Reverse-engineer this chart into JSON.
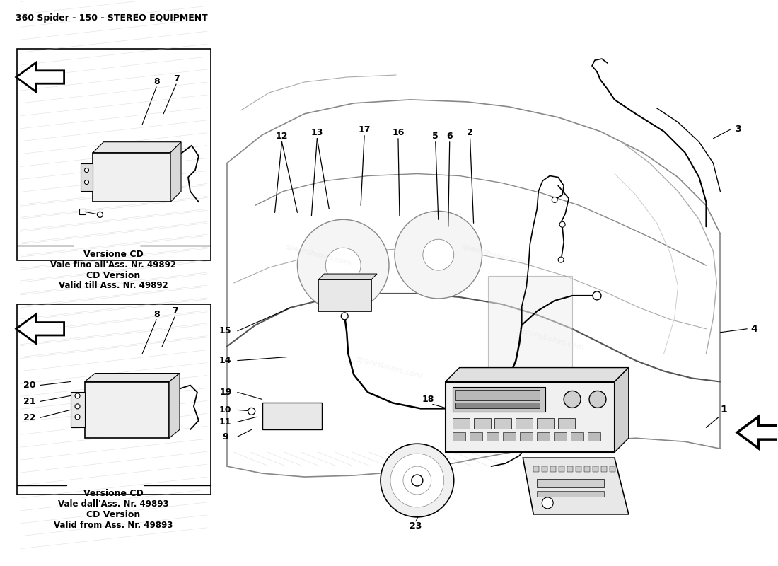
{
  "title": "360 Spider - 150 - STEREO EQUIPMENT",
  "bg_color": "#ffffff",
  "title_fontsize": 9,
  "watermark": "sparesboxes.com",
  "top_box_text_line1": "Versione CD",
  "top_box_text_line2": "Vale fino all'Ass. Nr. 49892",
  "top_box_text_line3": "CD Version",
  "top_box_text_line4": "Valid till Ass. Nr. 49892",
  "bot_box_text_line1": "Versione CD",
  "bot_box_text_line2": "Vale dall'Ass. Nr. 49893",
  "bot_box_text_line3": "CD Version",
  "bot_box_text_line4": "Valid from Ass. Nr. 49893",
  "label_font": 9,
  "label_font_small": 8
}
